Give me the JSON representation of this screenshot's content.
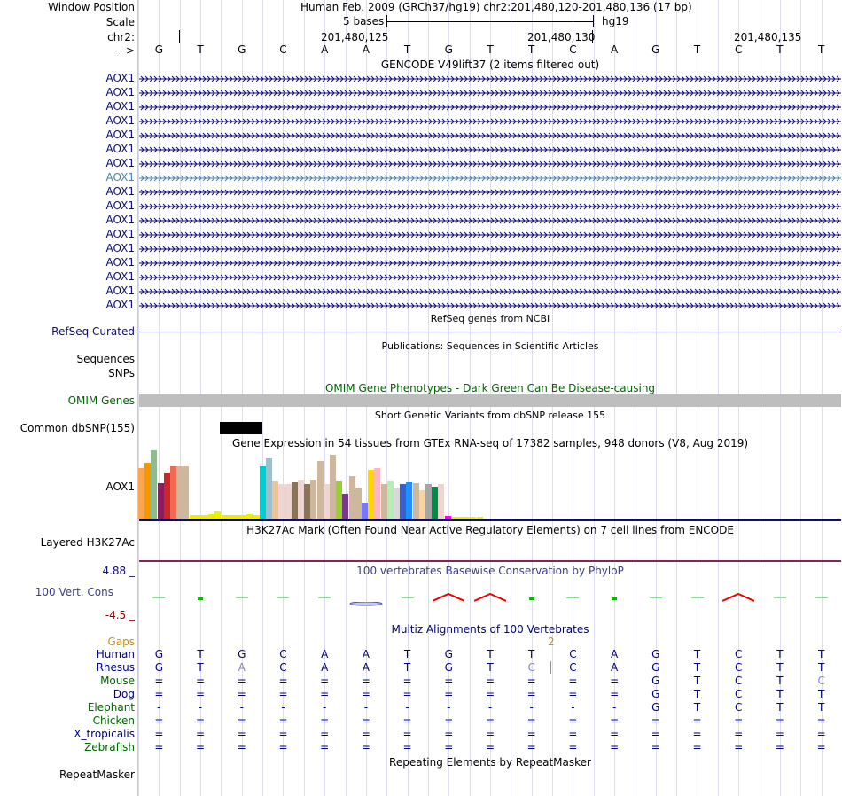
{
  "header": {
    "window_position_label": "Window Position",
    "window_position_value": "Human Feb. 2009 (GRCh37/hg19)   chr2:201,480,120-201,480,136 (17 bp)",
    "scale_label": "Scale",
    "scale_value": "5 bases",
    "scale_assembly": "hg19",
    "chrom_label": "chr2:",
    "ticks": [
      "201,480,125",
      "201,480,130",
      "201,480,135"
    ],
    "strand_label": "--->"
  },
  "sequence": [
    "G",
    "T",
    "G",
    "C",
    "A",
    "A",
    "T",
    "G",
    "T",
    "T",
    "C",
    "A",
    "G",
    "T",
    "C",
    "T",
    "T"
  ],
  "gencode": {
    "title": "GENCODE V49lift37 (2 items filtered out)",
    "rows": [
      "AOX1",
      "AOX1",
      "AOX1",
      "AOX1",
      "AOX1",
      "AOX1",
      "AOX1",
      "AOX1",
      "AOX1",
      "AOX1",
      "AOX1",
      "AOX1",
      "AOX1",
      "AOX1",
      "AOX1",
      "AOX1",
      "AOX1"
    ],
    "highlight_index": 7
  },
  "refseq": {
    "title": "RefSeq genes from NCBI",
    "label": "RefSeq Curated"
  },
  "publications": {
    "title": "Publications: Sequences in Scientific Articles",
    "label1": "Sequences",
    "label2": "SNPs"
  },
  "omim": {
    "title": "OMIM Gene Phenotypes - Dark Green Can Be Disease-causing",
    "label": "OMIM Genes"
  },
  "dbsnp": {
    "title": "Short Genetic Variants from dbSNP release 155",
    "label": "Common dbSNP(155)"
  },
  "gtex": {
    "title": "Gene Expression in 54 tissues from GTEx RNA-seq of 17382 samples, 948 donors (V8, Aug 2019)",
    "label": "AOX1",
    "values": [
      0.74,
      0.82,
      1.0,
      0.52,
      0.66,
      0.76,
      0.76,
      0.76,
      0.05,
      0.05,
      0.05,
      0.06,
      0.1,
      0.05,
      0.05,
      0.05,
      0.05,
      0.06,
      0.05,
      0.76,
      0.88,
      0.55,
      0.5,
      0.51,
      0.53,
      0.56,
      0.5,
      0.56,
      0.85,
      0.51,
      0.93,
      0.55,
      0.36,
      0.62,
      0.46,
      0.23,
      0.71,
      0.74,
      0.5,
      0.54,
      0.44,
      0.5,
      0.53,
      0.52,
      0.42,
      0.5,
      0.47,
      0.5,
      0.04,
      0.02,
      0.02,
      0.02,
      0.02,
      0.02
    ],
    "colors": [
      "#FFA54F",
      "#EE9A00",
      "#8FBC8F",
      "#8B1C62",
      "#CD2626",
      "#EE6A50",
      "#CDB79E",
      "#CDB79E",
      "#EEEE00",
      "#EEEE00",
      "#EEEE00",
      "#EEEE00",
      "#EEEE00",
      "#EEEE00",
      "#EEEE00",
      "#EEEE00",
      "#EEEE00",
      "#EEEE00",
      "#EEEE00",
      "#00CED1",
      "#9AC0CD",
      "#EEC591",
      "#EED5D2",
      "#EED5D2",
      "#8B7355",
      "#EED5D2",
      "#8B7355",
      "#CDB79E",
      "#CDB79E",
      "#EED5D2",
      "#CDB79E",
      "#9ACD32",
      "#7A378B",
      "#CDB79E",
      "#CDB79E",
      "#7777FF",
      "#FFD700",
      "#FFB6C1",
      "#CDB79E",
      "#B4EEB4",
      "#D9D9D9",
      "#3A5FCD",
      "#1E90FF",
      "#CDB79E",
      "#FFD39B",
      "#A6A6A6",
      "#008B45",
      "#EED5D2",
      "#FF00FF",
      "#EEEE00",
      "#EEEE00",
      "#EEEE00",
      "#EEEE00",
      "#EEEE00"
    ]
  },
  "h3k27ac": {
    "title": "H3K27Ac Mark (Often Found Near Active Regulatory Elements) on 7 cell lines from ENCODE",
    "label": "Layered H3K27Ac"
  },
  "conservation": {
    "title": "100 vertebrates Basewise Conservation by PhyloP",
    "label": "100 Vert. Cons",
    "max_label": "4.88 _",
    "min_label": "-4.5 _",
    "values": [
      0.0,
      0.3,
      -0.3,
      0.1,
      0.1,
      -0.6,
      0.2,
      0.9,
      0.9,
      0.3,
      0.1,
      0.3,
      0.15,
      0.1,
      0.9,
      0.05,
      0.2
    ]
  },
  "multiz": {
    "title": "Multiz Alignments of 100 Vertebrates",
    "gaps_label": "Gaps",
    "gap_count": "2",
    "species": [
      {
        "name": "Human",
        "color": "#000080",
        "bases": [
          "G",
          "T",
          "G",
          "C",
          "A",
          "A",
          "T",
          "G",
          "T",
          "T",
          "C",
          "A",
          "G",
          "T",
          "C",
          "T",
          "T"
        ]
      },
      {
        "name": "Rhesus",
        "color": "#000080",
        "bases": [
          "G",
          "T",
          "A",
          "C",
          "A",
          "A",
          "T",
          "G",
          "T",
          "C",
          "C",
          "A",
          "G",
          "T",
          "C",
          "T",
          "T"
        ]
      },
      {
        "name": "Mouse",
        "color": "#006400",
        "bases": [
          "=",
          "=",
          "=",
          "=",
          "=",
          "=",
          "=",
          "=",
          "=",
          "=",
          "=",
          "=",
          "G",
          "T",
          "C",
          "T",
          "C"
        ]
      },
      {
        "name": "Dog",
        "color": "#000080",
        "bases": [
          "=",
          "=",
          "=",
          "=",
          "=",
          "=",
          "=",
          "=",
          "=",
          "=",
          "=",
          "=",
          "G",
          "T",
          "C",
          "T",
          "T"
        ]
      },
      {
        "name": "Elephant",
        "color": "#006400",
        "bases": [
          "-",
          "-",
          "-",
          "-",
          "-",
          "-",
          "-",
          "-",
          "-",
          "-",
          "-",
          "-",
          "G",
          "T",
          "C",
          "T",
          "T"
        ]
      },
      {
        "name": "Chicken",
        "color": "#006400",
        "bases": [
          "=",
          "=",
          "=",
          "=",
          "=",
          "=",
          "=",
          "=",
          "=",
          "=",
          "=",
          "=",
          "=",
          "=",
          "=",
          "=",
          "="
        ]
      },
      {
        "name": "X_tropicalis",
        "color": "#000080",
        "bases": [
          "=",
          "=",
          "=",
          "=",
          "=",
          "=",
          "=",
          "=",
          "=",
          "=",
          "=",
          "=",
          "=",
          "=",
          "=",
          "=",
          "="
        ]
      },
      {
        "name": "Zebrafish",
        "color": "#006400",
        "bases": [
          "=",
          "=",
          "=",
          "=",
          "=",
          "=",
          "=",
          "=",
          "=",
          "=",
          "=",
          "=",
          "=",
          "=",
          "=",
          "=",
          "="
        ]
      }
    ]
  },
  "repeatmasker": {
    "title": "Repeating Elements by RepeatMasker",
    "label": "RepeatMasker"
  }
}
